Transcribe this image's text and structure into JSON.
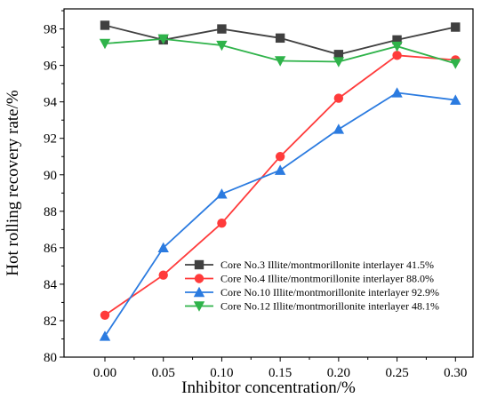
{
  "chart_data": {
    "type": "line",
    "xlabel": "Inhibitor concentration/%",
    "ylabel": "Hot rolling recovery rate/%",
    "xlim": [
      -0.035,
      0.315
    ],
    "ylim": [
      80,
      99.1
    ],
    "x": [
      0.0,
      0.05,
      0.1,
      0.15,
      0.2,
      0.25,
      0.3
    ],
    "x_ticks": [
      "0.00",
      "0.05",
      "0.10",
      "0.15",
      "0.20",
      "0.25",
      "0.30"
    ],
    "y_ticks": [
      80,
      82,
      84,
      86,
      88,
      90,
      92,
      94,
      96,
      98
    ],
    "grid": false,
    "legend_position": "bottom-right",
    "series": [
      {
        "name": "Core No.3  Illite/montmorillonite interlayer 41.5%",
        "marker": "square",
        "color": "#404040",
        "values": [
          98.2,
          97.4,
          98.0,
          97.5,
          96.6,
          97.4,
          98.1
        ]
      },
      {
        "name": "Core No.4  Illite/montmorillonite interlayer 88.0%",
        "marker": "circle",
        "color": "#ff3b3b",
        "values": [
          82.3,
          84.5,
          87.35,
          91.0,
          94.2,
          96.55,
          96.3
        ]
      },
      {
        "name": "Core No.10 Illite/montmorillonite interlayer 92.9%",
        "marker": "triangle-up",
        "color": "#2b7be0",
        "values": [
          81.15,
          86.0,
          88.95,
          90.25,
          92.5,
          94.5,
          94.1
        ]
      },
      {
        "name": "Core No.12 Illite/montmorillonite interlayer 48.1%",
        "marker": "triangle-down",
        "color": "#2fb34a",
        "values": [
          97.2,
          97.45,
          97.1,
          96.25,
          96.2,
          97.05,
          96.1
        ]
      }
    ]
  }
}
